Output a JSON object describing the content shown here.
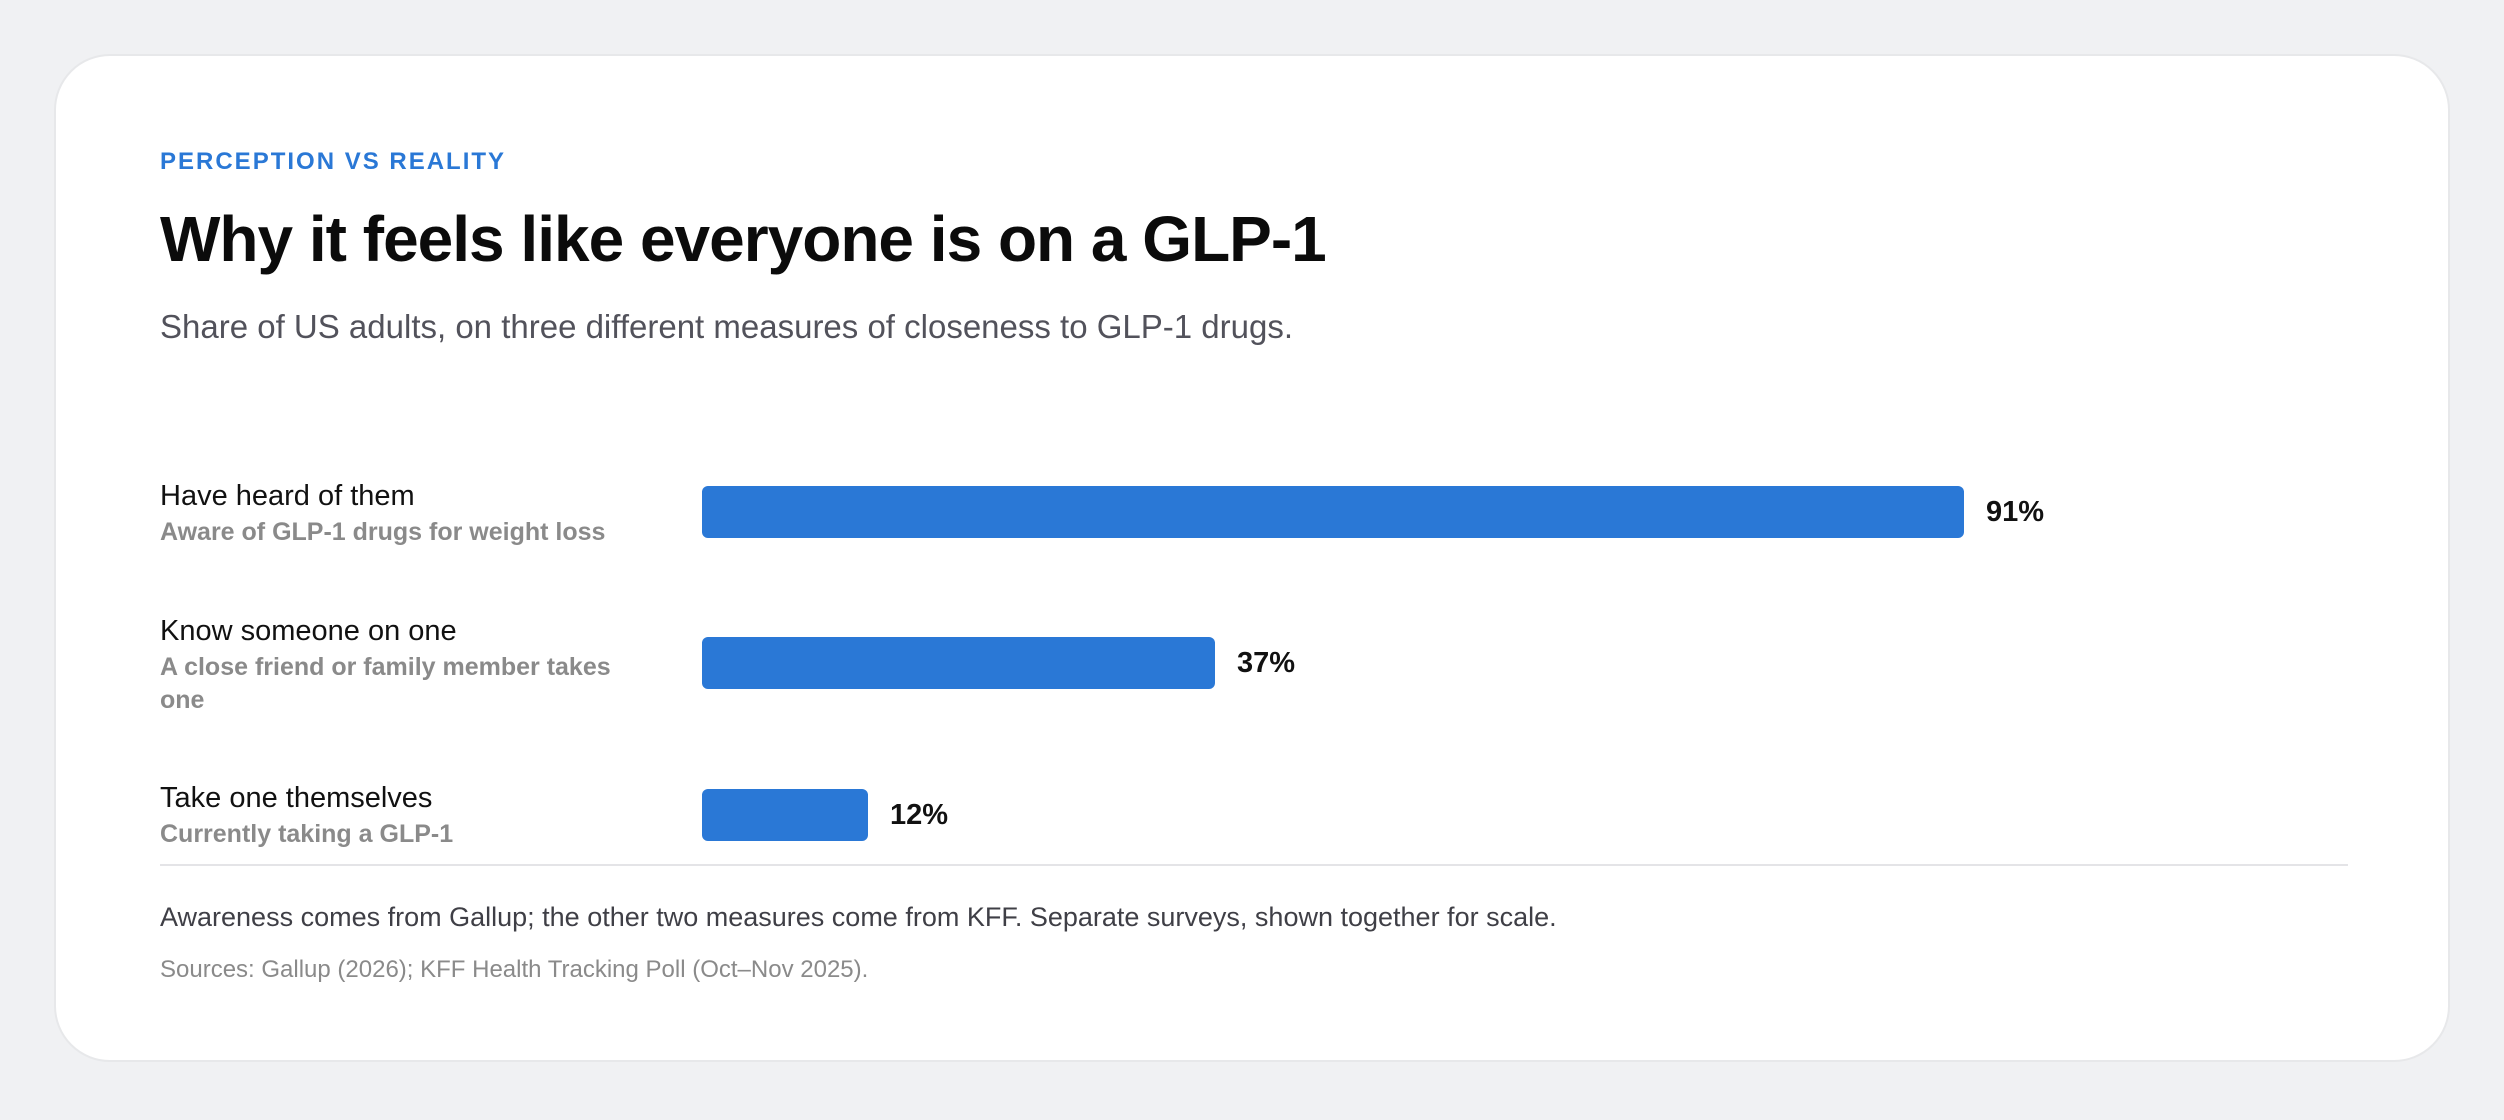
{
  "eyebrow": "PERCEPTION VS REALITY",
  "title": "Why it feels like everyone is on a GLP-1",
  "subtitle": "Share of US adults, on three different measures of closeness to GLP-1 drugs.",
  "note": "Awareness comes from Gallup; the other two measures come from KFF. Separate surveys, shown together for scale.",
  "sources": "Sources: Gallup (2026); KFF Health Tracking Poll (Oct–Nov 2025).",
  "colors": {
    "accent": "#2a78d6",
    "background": "#f0f1f3",
    "card": "#ffffff"
  },
  "chart_data": {
    "type": "bar",
    "orientation": "horizontal",
    "categories": [
      "Have heard of them",
      "Know someone on one",
      "Take one themselves"
    ],
    "descriptions": [
      "Aware of GLP-1 drugs for weight loss",
      "A close friend or family member takes one",
      "Currently taking a GLP-1"
    ],
    "values": [
      91,
      37,
      12
    ],
    "value_labels": [
      "91%",
      "37%",
      "12%"
    ],
    "title": "Why it feels like everyone is on a GLP-1",
    "xlim": [
      0,
      100
    ],
    "grid": false,
    "legend": "none"
  }
}
